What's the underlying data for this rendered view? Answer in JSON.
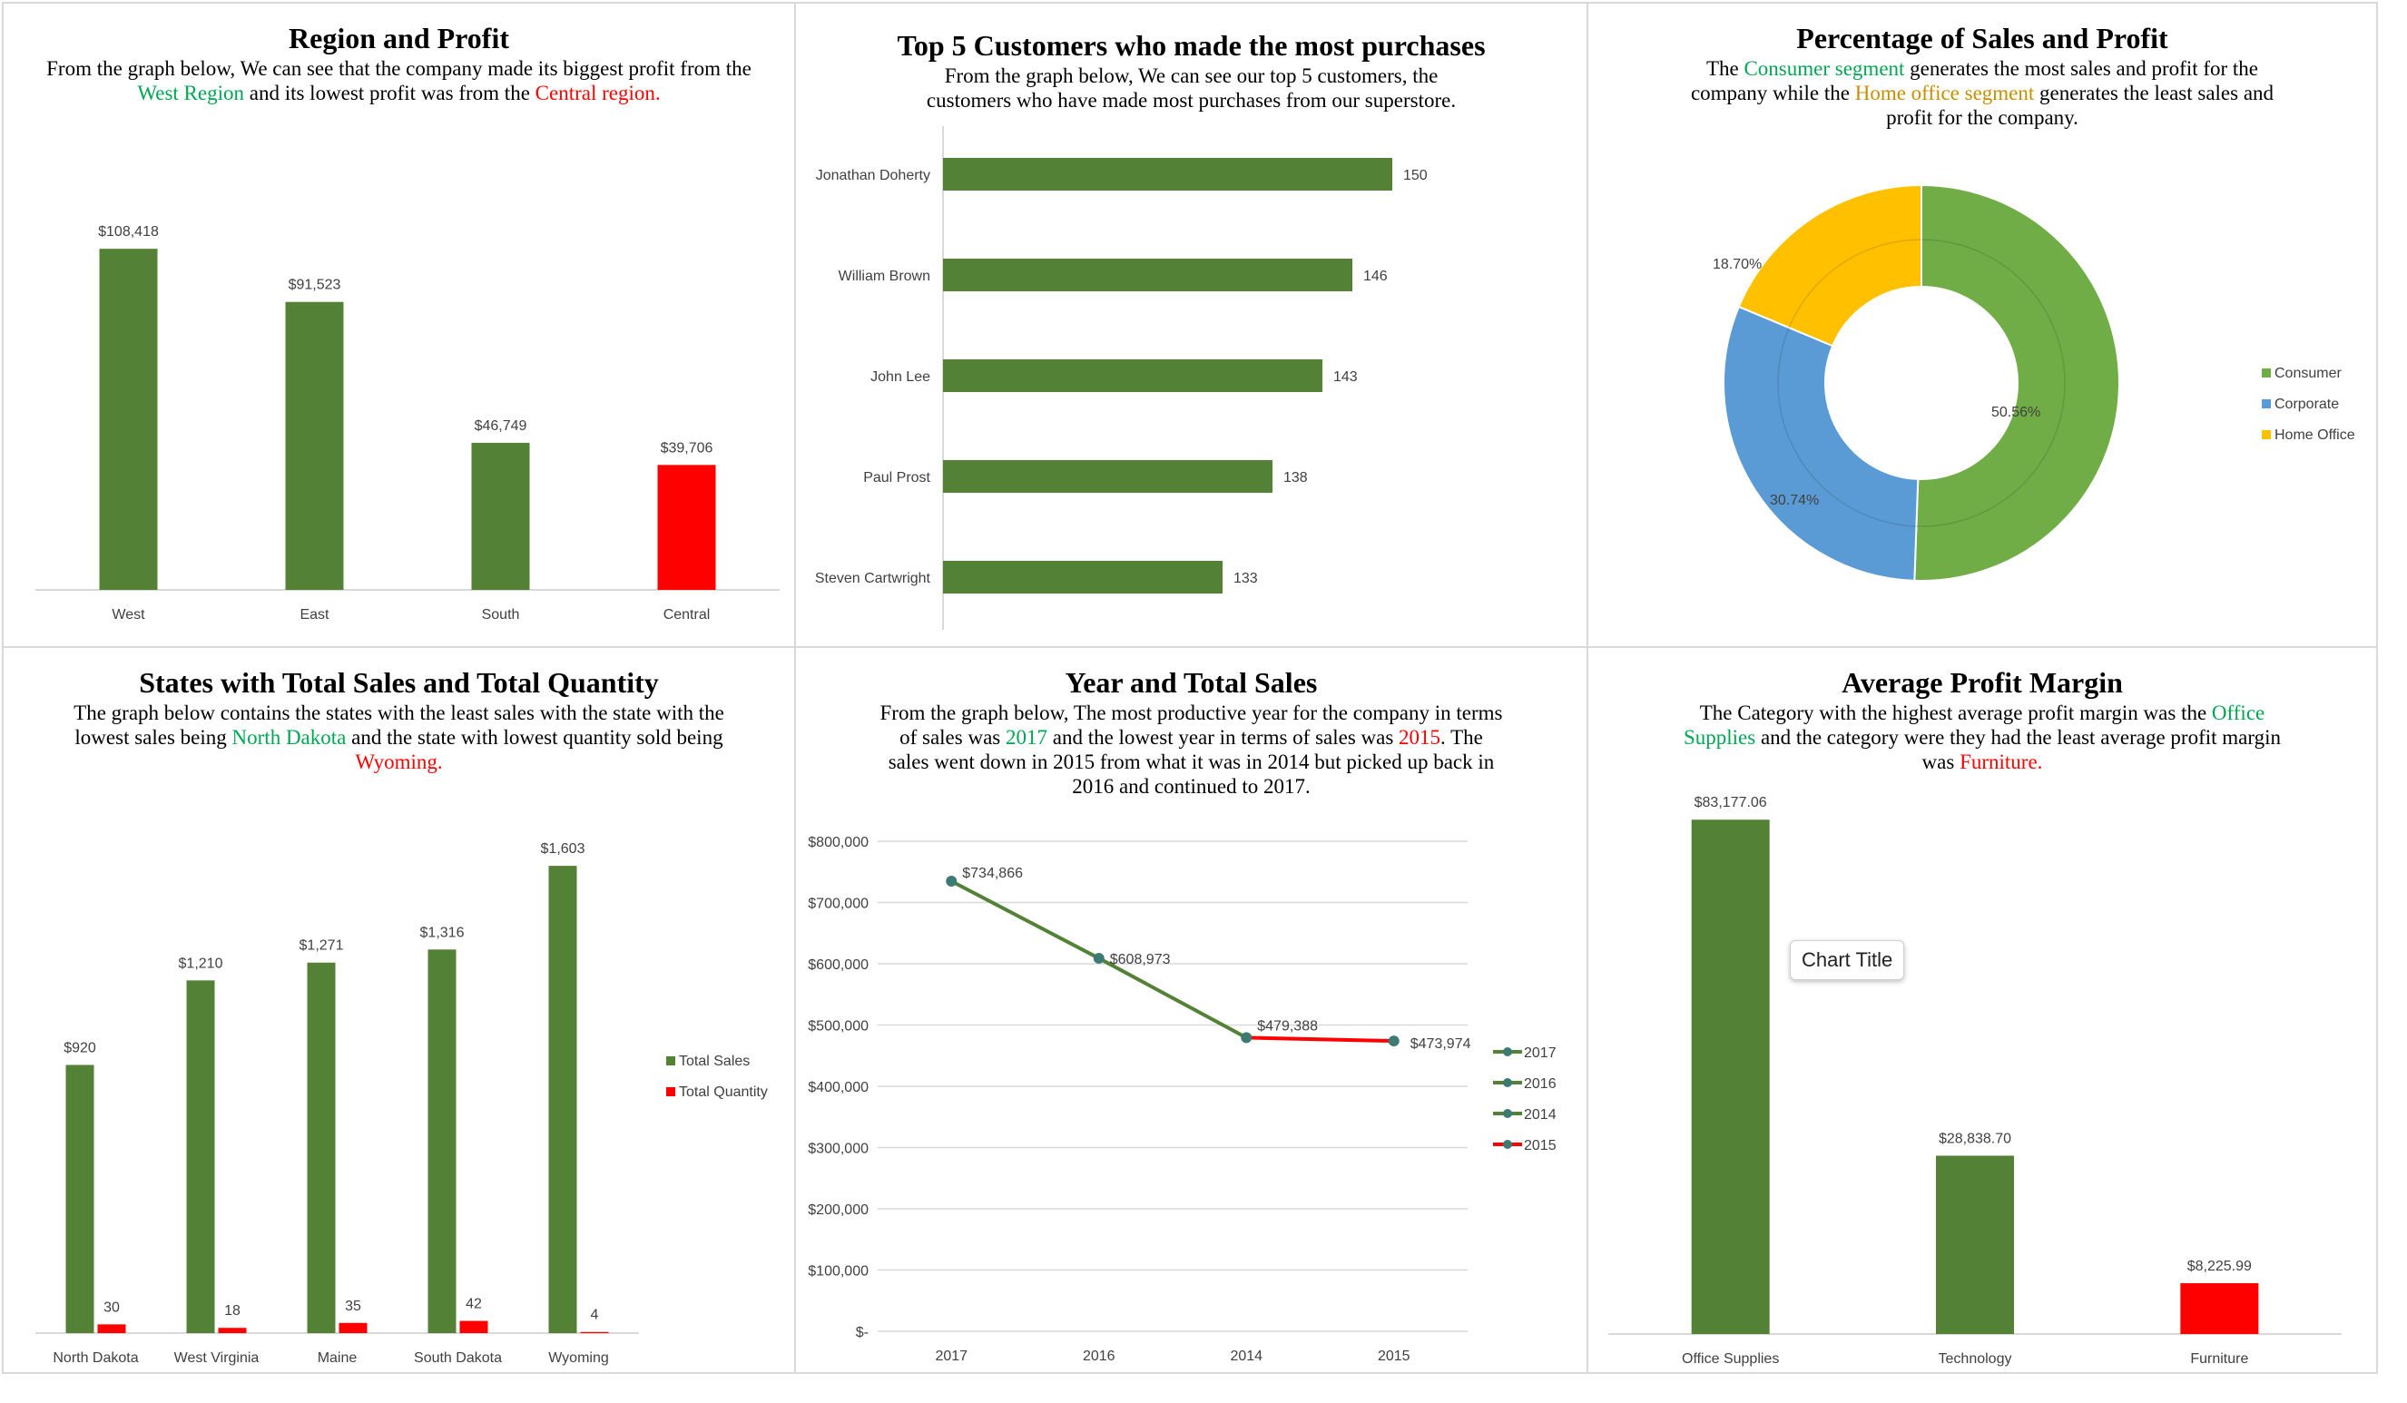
{
  "colors": {
    "green": "#538135",
    "red": "#ff0000",
    "consumer": "#70ad47",
    "corporate": "#5b9bd5",
    "home_office": "#ffc000",
    "accent_green_text": "#00a651",
    "accent_orange_text": "#c59000"
  },
  "panel1": {
    "title": "Region and Profit",
    "desc": {
      "p1": "From the graph below, We can see that the company made its biggest profit from the ",
      "h1": "West Region",
      "p2": " and its lowest profit was from the ",
      "h2": "Central region."
    }
  },
  "panel2": {
    "title": "Top 5 Customers who made the most purchases",
    "desc": "From the graph below, We can see our top 5 customers, the customers who have made most purchases from our superstore."
  },
  "panel3": {
    "title": "Percentage of Sales and Profit",
    "desc": {
      "p1": "The ",
      "h1": "Consumer segment",
      "p2": " generates the most sales and profit for the company while the ",
      "h2": "Home office segment",
      "p3": " generates the least sales and profit for the company."
    }
  },
  "panel4": {
    "title": "States with Total Sales and Total Quantity",
    "desc": {
      "p1": "The graph below contains the states with the least sales with the state with the lowest sales being ",
      "h1": "North Dakota",
      "p2": " and the state with lowest quantity sold being ",
      "h2": "Wyoming."
    }
  },
  "panel5": {
    "title": "Year and Total Sales",
    "desc": {
      "p1": "From the graph below, The most productive year for the company in terms of sales was ",
      "h1": "2017",
      "p2": " and the lowest year in terms of sales was ",
      "h2": "2015",
      "p3": ". The sales went down in 2015 from what it was in 2014 but picked up back in 2016 and continued to 2017."
    }
  },
  "panel6": {
    "title": "Average Profit Margin",
    "desc": {
      "p1": "The Category with the highest average profit margin was the ",
      "h1": "Office Supplies",
      "p2": " and the category were they had the least average profit margin was ",
      "h2": "Furniture."
    },
    "tooltip": "Chart Title"
  },
  "chart_data": [
    {
      "id": "region-profit",
      "type": "bar",
      "categories": [
        "West",
        "East",
        "South",
        "Central"
      ],
      "values": [
        108418,
        91523,
        46749,
        39706
      ],
      "labels": [
        "$108,418",
        "$91,523",
        "$46,749",
        "$39,706"
      ],
      "highlight": [
        false,
        false,
        false,
        true
      ],
      "ylim": [
        0,
        120000
      ]
    },
    {
      "id": "top-customers",
      "type": "bar",
      "orientation": "horizontal",
      "categories": [
        "Jonathan Doherty",
        "William Brown",
        "John Lee",
        "Paul Prost",
        "Steven Cartwright"
      ],
      "values": [
        150,
        146,
        143,
        138,
        133
      ],
      "labels": [
        "150",
        "146",
        "143",
        "138",
        "133"
      ],
      "xlim": [
        105,
        155
      ]
    },
    {
      "id": "segment-share",
      "type": "pie",
      "variant": "donut",
      "categories": [
        "Consumer",
        "Corporate",
        "Home Office"
      ],
      "values": [
        50.56,
        30.74,
        18.7
      ],
      "labels": [
        "50.56%",
        "30.74%",
        "18.70%"
      ],
      "legend": "right"
    },
    {
      "id": "states-sales-quantity",
      "type": "bar",
      "categories": [
        "North Dakota",
        "West Virginia",
        "Maine",
        "South Dakota",
        "Wyoming"
      ],
      "series": [
        {
          "name": "Total Sales",
          "values": [
            920,
            1210,
            1271,
            1316,
            1603
          ],
          "labels": [
            "$920",
            "$1,210",
            "$1,271",
            "$1,316",
            "$1,603"
          ]
        },
        {
          "name": "Total Quantity",
          "values": [
            30,
            18,
            35,
            42,
            4
          ],
          "labels": [
            "30",
            "18",
            "35",
            "42",
            "4"
          ]
        }
      ],
      "ylim": [
        0,
        1650
      ],
      "legend": "right"
    },
    {
      "id": "year-sales",
      "type": "line",
      "x": [
        "2017",
        "2016",
        "2014",
        "2015"
      ],
      "y": [
        734866,
        608973,
        479388,
        473974
      ],
      "labels": [
        "$734,866",
        "$608,973",
        "$479,388",
        "$473,974"
      ],
      "yticks": [
        "$-",
        "$100,000",
        "$200,000",
        "$300,000",
        "$400,000",
        "$500,000",
        "$600,000",
        "$700,000",
        "$800,000"
      ],
      "ylim": [
        0,
        800000
      ],
      "grid": true,
      "legend_entries": [
        "2017",
        "2016",
        "2014",
        "2015"
      ],
      "legend": "right"
    },
    {
      "id": "avg-profit-margin",
      "type": "bar",
      "categories": [
        "Office Supplies",
        "Technology",
        "Furniture"
      ],
      "values": [
        83177.06,
        28838.7,
        8225.99
      ],
      "labels": [
        "$83,177.06",
        "$28,838.70",
        "$8,225.99"
      ],
      "highlight": [
        false,
        false,
        true
      ],
      "ylim": [
        0,
        86000
      ]
    }
  ]
}
